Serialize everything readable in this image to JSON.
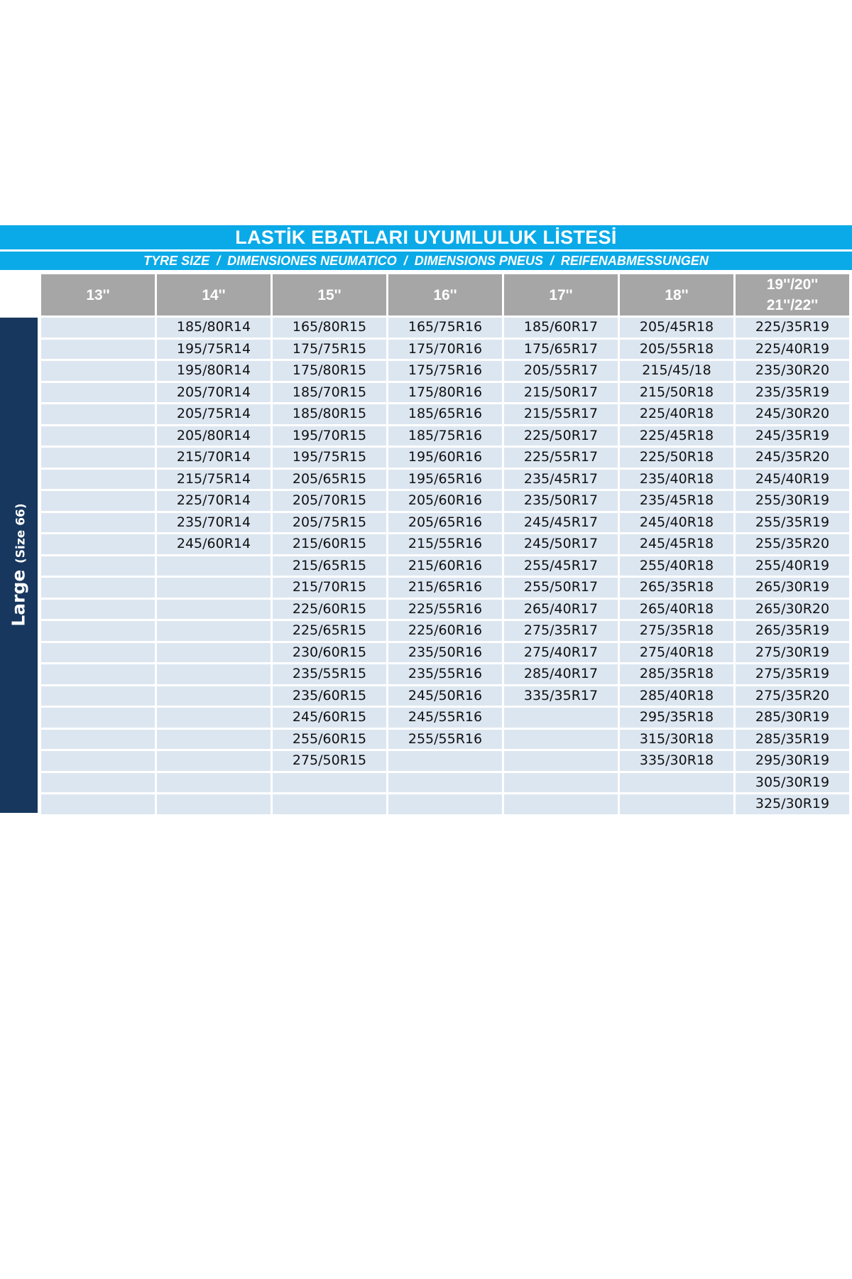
{
  "title": "LASTİK EBATLARI UYUMLULUK LİSTESİ",
  "subtitle": "TYRE SIZE  /  DIMENSIONES NEUMATICO  /  DIMENSIONS PNEUS  /  REIFENABMESSUNGEN",
  "side_label": {
    "main": "Large",
    "size": "(Size 66)"
  },
  "colors": {
    "band": "#0aaae8",
    "side": "#17375e",
    "header": "#a6a6a6",
    "cell": "#dce6f1"
  },
  "columns": [
    "13''",
    "14''",
    "15''",
    "16''",
    "17''",
    "18''",
    "19''/20'' 21''/22''"
  ],
  "rows": [
    [
      "",
      "185/80R14",
      "165/80R15",
      "165/75R16",
      "185/60R17",
      "205/45R18",
      "225/35R19"
    ],
    [
      "",
      "195/75R14",
      "175/75R15",
      "175/70R16",
      "175/65R17",
      "205/55R18",
      "225/40R19"
    ],
    [
      "",
      "195/80R14",
      "175/80R15",
      "175/75R16",
      "205/55R17",
      "215/45/18",
      "235/30R20"
    ],
    [
      "",
      "205/70R14",
      "185/70R15",
      "175/80R16",
      "215/50R17",
      "215/50R18",
      "235/35R19"
    ],
    [
      "",
      "205/75R14",
      "185/80R15",
      "185/65R16",
      "215/55R17",
      "225/40R18",
      "245/30R20"
    ],
    [
      "",
      "205/80R14",
      "195/70R15",
      "185/75R16",
      "225/50R17",
      "225/45R18",
      "245/35R19"
    ],
    [
      "",
      "215/70R14",
      "195/75R15",
      "195/60R16",
      "225/55R17",
      "225/50R18",
      "245/35R20"
    ],
    [
      "",
      "215/75R14",
      "205/65R15",
      "195/65R16",
      "235/45R17",
      "235/40R18",
      "245/40R19"
    ],
    [
      "",
      "225/70R14",
      "205/70R15",
      "205/60R16",
      "235/50R17",
      "235/45R18",
      "255/30R19"
    ],
    [
      "",
      "235/70R14",
      "205/75R15",
      "205/65R16",
      "245/45R17",
      "245/40R18",
      "255/35R19"
    ],
    [
      "",
      "245/60R14",
      "215/60R15",
      "215/55R16",
      "245/50R17",
      "245/45R18",
      "255/35R20"
    ],
    [
      "",
      "",
      "215/65R15",
      "215/60R16",
      "255/45R17",
      "255/40R18",
      "255/40R19"
    ],
    [
      "",
      "",
      "215/70R15",
      "215/65R16",
      "255/50R17",
      "265/35R18",
      "265/30R19"
    ],
    [
      "",
      "",
      "225/60R15",
      "225/55R16",
      "265/40R17",
      "265/40R18",
      "265/30R20"
    ],
    [
      "",
      "",
      "225/65R15",
      "225/60R16",
      "275/35R17",
      "275/35R18",
      "265/35R19"
    ],
    [
      "",
      "",
      "230/60R15",
      "235/50R16",
      "275/40R17",
      "275/40R18",
      "275/30R19"
    ],
    [
      "",
      "",
      "235/55R15",
      "235/55R16",
      "285/40R17",
      "285/35R18",
      "275/35R19"
    ],
    [
      "",
      "",
      "235/60R15",
      "245/50R16",
      "335/35R17",
      "285/40R18",
      "275/35R20"
    ],
    [
      "",
      "",
      "245/60R15",
      "245/55R16",
      "",
      "295/35R18",
      "285/30R19"
    ],
    [
      "",
      "",
      "255/60R15",
      "255/55R16",
      "",
      "315/30R18",
      "285/35R19"
    ],
    [
      "",
      "",
      "275/50R15",
      "",
      "",
      "335/30R18",
      "295/30R19"
    ],
    [
      "",
      "",
      "",
      "",
      "",
      "",
      "305/30R19"
    ],
    [
      "",
      "",
      "",
      "",
      "",
      "",
      "325/30R19"
    ]
  ]
}
